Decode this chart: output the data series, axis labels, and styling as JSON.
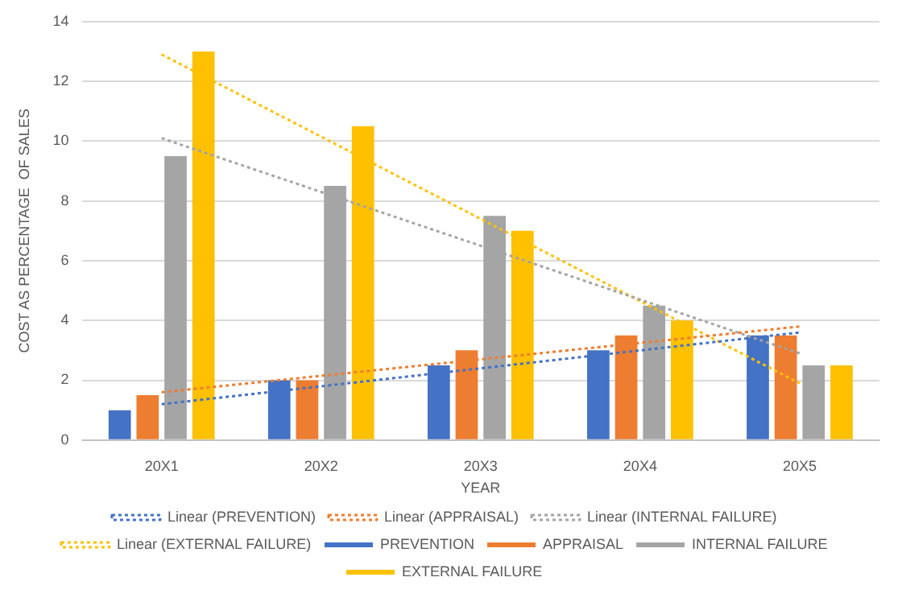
{
  "chart_data": {
    "type": "bar",
    "xlabel": "YEAR",
    "ylabel": "COST AS PERCENTAGE  OF SALES",
    "categories": [
      "20X1",
      "20X2",
      "20X3",
      "20X4",
      "20X5"
    ],
    "series": [
      {
        "name": "PREVENTION",
        "color": "#4472c4",
        "values": [
          1,
          2,
          2.5,
          3,
          3.5
        ]
      },
      {
        "name": "APPRAISAL",
        "color": "#ed7d31",
        "values": [
          1.5,
          2,
          3,
          3.5,
          3.5
        ]
      },
      {
        "name": "INTERNAL FAILURE",
        "color": "#a5a5a5",
        "values": [
          9.5,
          8.5,
          7.5,
          4.5,
          2.5
        ]
      },
      {
        "name": "EXTERNAL FAILURE",
        "color": "#ffc000",
        "values": [
          13,
          10.5,
          7,
          4,
          2.5
        ]
      },
      {
        "name": "Linear (PREVENTION)",
        "type": "line",
        "line_style": "dotted",
        "marker": "none",
        "color": "#4472c4",
        "x": [
          "20X1",
          "20X2",
          "20X3",
          "20X4",
          "20X5"
        ],
        "values": [
          1.2,
          1.8,
          2.4,
          3.0,
          3.6
        ]
      },
      {
        "name": "Linear (APPRAISAL)",
        "type": "line",
        "line_style": "dotted",
        "marker": "none",
        "color": "#ed7d31",
        "x": [
          "20X1",
          "20X2",
          "20X3",
          "20X4",
          "20X5"
        ],
        "values": [
          1.6,
          2.15,
          2.7,
          3.25,
          3.8
        ]
      },
      {
        "name": "Linear (INTERNAL FAILURE)",
        "type": "line",
        "line_style": "dotted",
        "marker": "none",
        "color": "#a5a5a5",
        "x": [
          "20X1",
          "20X2",
          "20X3",
          "20X4",
          "20X5"
        ],
        "values": [
          10.1,
          8.3,
          6.5,
          4.7,
          2.9
        ]
      },
      {
        "name": "Linear (EXTERNAL FAILURE)",
        "type": "line",
        "line_style": "dotted",
        "marker": "none",
        "color": "#ffc000",
        "x": [
          "20X1",
          "20X2",
          "20X3",
          "20X4",
          "20X5"
        ],
        "values": [
          12.9,
          10.15,
          7.4,
          4.65,
          1.9
        ]
      }
    ],
    "ylim": [
      0,
      14
    ],
    "yticks": [
      0,
      2,
      4,
      6,
      8,
      10,
      12,
      14
    ],
    "grid": "y",
    "legend": "bottom"
  }
}
